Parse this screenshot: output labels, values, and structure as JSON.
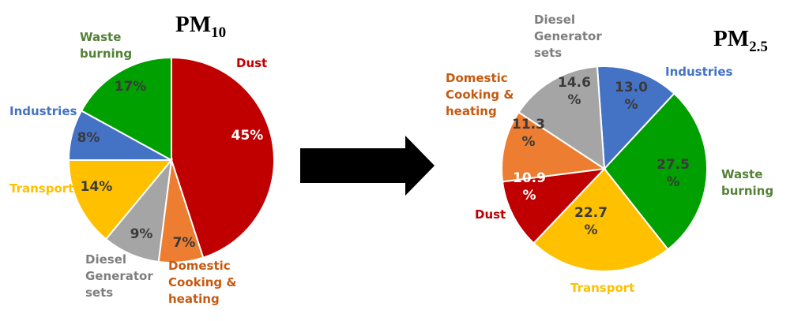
{
  "chart_data": [
    {
      "type": "pie",
      "title_main": "PM",
      "title_sub": "10",
      "slices": [
        {
          "label": [
            "Dust"
          ],
          "value_text": [
            "45%"
          ],
          "value": 45,
          "color": "#c00000",
          "text_color": "#c00000",
          "pct_color": "#ffffff"
        },
        {
          "label": [
            "Domestic",
            "Cooking &",
            "heating"
          ],
          "value_text": [
            "7%"
          ],
          "value": 7,
          "color": "#ed7d31",
          "text_color": "#c55a11",
          "pct_color": "#3a3a3a"
        },
        {
          "label": [
            "Diesel",
            "Generator",
            "sets"
          ],
          "value_text": [
            "9%"
          ],
          "value": 9,
          "color": "#a5a5a5",
          "text_color": "#7f7f7f",
          "pct_color": "#3a3a3a"
        },
        {
          "label": [
            "Transport"
          ],
          "value_text": [
            "14%"
          ],
          "value": 14,
          "color": "#ffc000",
          "text_color": "#ffc000",
          "pct_color": "#3a3a3a"
        },
        {
          "label": [
            "Industries"
          ],
          "value_text": [
            "8%"
          ],
          "value": 8,
          "color": "#4472c4",
          "text_color": "#4472c4",
          "pct_color": "#3a3a3a"
        },
        {
          "label": [
            "Waste",
            "burning"
          ],
          "value_text": [
            "17%"
          ],
          "value": 17,
          "color": "#00a000",
          "text_color": "#538135",
          "pct_color": "#3a3a3a"
        }
      ]
    },
    {
      "type": "pie",
      "title_main": "PM",
      "title_sub": "2.5",
      "slices": [
        {
          "label": [
            "Industries"
          ],
          "value_text": [
            "13.0",
            "%"
          ],
          "value": 13.0,
          "color": "#4472c4",
          "text_color": "#4472c4",
          "pct_color": "#3a3a3a"
        },
        {
          "label": [
            "Waste",
            "burning"
          ],
          "value_text": [
            "27.5",
            "%"
          ],
          "value": 27.5,
          "color": "#00a000",
          "text_color": "#538135",
          "pct_color": "#3a3a3a"
        },
        {
          "label": [
            "Transport"
          ],
          "value_text": [
            "22.7",
            "%"
          ],
          "value": 22.7,
          "color": "#ffc000",
          "text_color": "#ffc000",
          "pct_color": "#3a3a3a"
        },
        {
          "label": [
            "Dust"
          ],
          "value_text": [
            "10.9",
            "%"
          ],
          "value": 10.9,
          "color": "#c00000",
          "text_color": "#c00000",
          "pct_color": "#ffffff"
        },
        {
          "label": [
            "Domestic",
            "Cooking &",
            "heating"
          ],
          "value_text": [
            "11.3",
            "%"
          ],
          "value": 11.3,
          "color": "#ed7d31",
          "text_color": "#c55a11",
          "pct_color": "#3a3a3a"
        },
        {
          "label": [
            "Diesel",
            "Generator",
            "sets"
          ],
          "value_text": [
            "14.6",
            "%"
          ],
          "value": 14.6,
          "color": "#a5a5a5",
          "text_color": "#7f7f7f",
          "pct_color": "#3a3a3a"
        }
      ]
    }
  ],
  "arrow": {
    "icon": "right-arrow-icon",
    "color": "#000000"
  }
}
